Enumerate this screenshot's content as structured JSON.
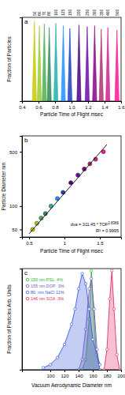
{
  "chart_data": [
    {
      "type": "area",
      "title": "a",
      "x_label": "Particle Time of Flight msec",
      "y_label": "Fraction of Particles",
      "xlim": [
        0.4,
        1.6
      ],
      "xticks": [
        0.4,
        0.6,
        0.8,
        {
          "value": 1,
          "label": "1.0"
        },
        1.2,
        1.4,
        1.6
      ],
      "ylim": [
        0,
        1
      ],
      "tick_labels": "x",
      "series": [
        {
          "name": "50",
          "color": "#c8c800",
          "x": [
            0.525,
            0.55,
            0.575
          ],
          "values": [
            0,
            0.95,
            0
          ]
        },
        {
          "name": "60",
          "color": "#9acd32",
          "x": [
            0.585,
            0.61,
            0.635
          ],
          "values": [
            0,
            0.9,
            0
          ]
        },
        {
          "name": "70",
          "color": "#4caf50",
          "x": [
            0.645,
            0.67,
            0.695
          ],
          "values": [
            0,
            0.92,
            0
          ]
        },
        {
          "name": "80",
          "color": "#2e8b57",
          "x": [
            0.705,
            0.73,
            0.755
          ],
          "values": [
            0,
            0.88,
            0
          ]
        },
        {
          "name": "100",
          "color": "#20b2aa",
          "x": [
            0.785,
            0.81,
            0.835
          ],
          "values": [
            0,
            0.93,
            0
          ]
        },
        {
          "name": "125",
          "color": "#1e90ff",
          "x": [
            0.875,
            0.9,
            0.925
          ],
          "values": [
            0,
            0.9,
            0
          ]
        },
        {
          "name": "150",
          "color": "#1f3fbf",
          "x": [
            0.955,
            0.98,
            1.005
          ],
          "values": [
            0,
            0.87,
            0
          ]
        },
        {
          "name": "200",
          "color": "#4b0082",
          "x": [
            1.065,
            1.09,
            1.115
          ],
          "values": [
            0,
            0.91,
            0
          ]
        },
        {
          "name": "250",
          "color": "#6a0dad",
          "x": [
            1.165,
            1.19,
            1.215
          ],
          "values": [
            0,
            0.89,
            0
          ]
        },
        {
          "name": "300",
          "color": "#8b008b",
          "x": [
            1.255,
            1.28,
            1.305
          ],
          "values": [
            0,
            0.9,
            0
          ]
        },
        {
          "name": "350",
          "color": "#b03070",
          "x": [
            1.335,
            1.36,
            1.385
          ],
          "values": [
            0,
            0.86,
            0
          ]
        },
        {
          "name": "400",
          "color": "#d02090",
          "x": [
            1.415,
            1.44,
            1.465
          ],
          "values": [
            0,
            0.88,
            0
          ]
        },
        {
          "name": "500",
          "color": "#ff1493",
          "x": [
            1.525,
            1.55,
            1.575
          ],
          "values": [
            0,
            0.85,
            0
          ]
        }
      ]
    },
    {
      "type": "scatter",
      "title": "b",
      "x_label": "Particle Time of Flight msec",
      "y_label": "Particle Diameter nm",
      "xlim": [
        0.4,
        1.8
      ],
      "xticks": [
        0.5,
        1,
        1.5
      ],
      "ylim": [
        40,
        800
      ],
      "yticks": [
        50,
        100,
        500
      ],
      "log": "y",
      "series": [
        {
          "type": "scatter",
          "marker": "circle",
          "x": [
            0.55,
            0.61,
            0.67,
            0.73,
            0.81,
            0.9,
            0.98,
            1.09,
            1.19,
            1.28,
            1.36,
            1.44,
            1.55
          ],
          "values": [
            50,
            60,
            70,
            80,
            100,
            125,
            150,
            200,
            250,
            300,
            350,
            400,
            500
          ],
          "colors": [
            "#c8c800",
            "#9acd32",
            "#4caf50",
            "#2e8b57",
            "#20b2aa",
            "#1e90ff",
            "#1f3fbf",
            "#4b0082",
            "#6a0dad",
            "#8b008b",
            "#b03070",
            "#d02090",
            "#ff1493"
          ]
        },
        {
          "type": "line",
          "color": "#000000",
          "x": [
            0.5,
            1.6
          ],
          "values": [
            44,
            620
          ]
        }
      ],
      "annotations": [
        {
          "text": "dva = 311.45 * TOF",
          "superscript": "2.8366"
        },
        {
          "text": "R² = 0.9995"
        }
      ]
    },
    {
      "type": "line",
      "title": "c",
      "x_label": "Vacuum Aerodynamic Diameter nm",
      "y_label": "Fraction of Particles Arb. Units",
      "xlim": [
        60,
        200
      ],
      "xticks": [
        100,
        120,
        140,
        160,
        180,
        200
      ],
      "ylim": [
        0,
        1
      ],
      "tick_labels": "x",
      "legend": "upper left",
      "series": [
        {
          "name": "150 nm PSL  4%",
          "color": "#2fb52f",
          "marker": "circle",
          "x": [
            145,
            150,
            155,
            158,
            161,
            165,
            170
          ],
          "values": [
            0,
            0.1,
            0.5,
            0.98,
            0.6,
            0.15,
            0
          ]
        },
        {
          "name": "155 nm DOP  3%",
          "color": "#7b5cc4",
          "marker": "circle",
          "x": [
            140,
            145,
            150,
            155,
            158,
            162,
            166,
            170
          ],
          "values": [
            0,
            0.1,
            0.4,
            0.8,
            0.9,
            0.6,
            0.2,
            0
          ]
        },
        {
          "name": "80  nm NaCl 11%",
          "color": "#3b5bdb",
          "marker": "circle",
          "x": [
            90,
            100,
            110,
            120,
            130,
            135,
            140,
            145,
            150,
            155,
            160,
            170
          ],
          "values": [
            0.02,
            0.05,
            0.12,
            0.25,
            0.45,
            0.6,
            0.8,
            0.95,
            0.85,
            0.6,
            0.3,
            0.05
          ]
        },
        {
          "name": "146 nm SOA  3%",
          "color": "#e0306a",
          "marker": "circle",
          "x": [
            176,
            180,
            184,
            187,
            190,
            194,
            198
          ],
          "values": [
            0,
            0.2,
            0.7,
            0.98,
            0.6,
            0.15,
            0
          ]
        }
      ]
    }
  ]
}
